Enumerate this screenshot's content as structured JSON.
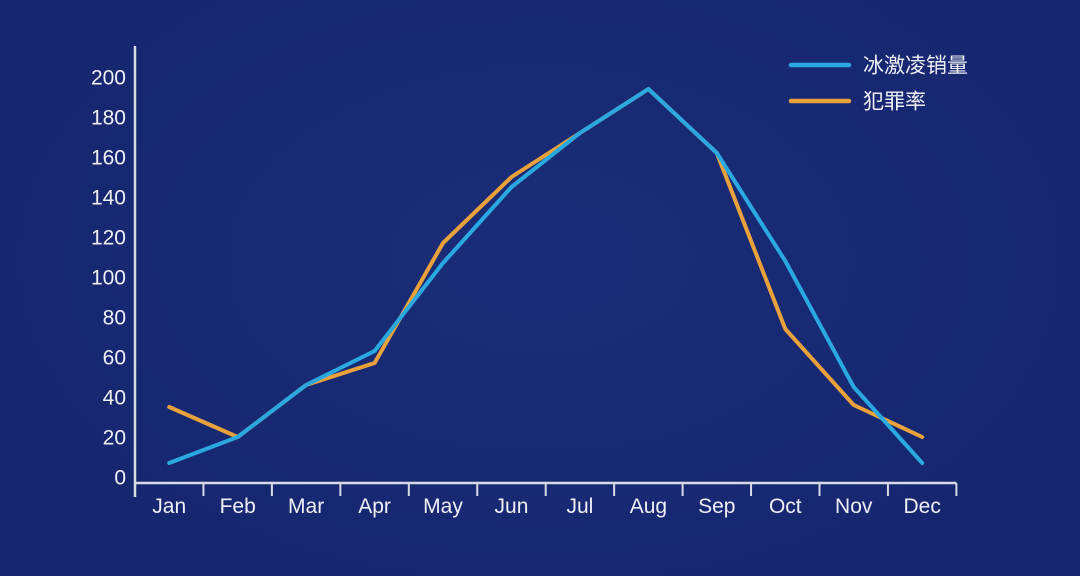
{
  "chart_data": {
    "type": "line",
    "title": "",
    "xlabel": "",
    "ylabel": "",
    "categories": [
      "Jan",
      "Feb",
      "Mar",
      "Apr",
      "May",
      "Jun",
      "Jul",
      "Aug",
      "Sep",
      "Oct",
      "Nov",
      "Dec"
    ],
    "series": [
      {
        "id": "ice-cream-sales",
        "name": "冰激凌销量",
        "color": "#2aa9e1",
        "values": [
          7,
          20,
          46,
          63,
          107,
          145,
          172,
          194,
          162,
          108,
          45,
          7
        ]
      },
      {
        "id": "crime-rate",
        "name": "犯罪率",
        "color": "#e9a23b",
        "values": [
          35,
          20,
          46,
          57,
          117,
          150,
          172,
          194,
          162,
          74,
          36,
          20
        ]
      }
    ],
    "ylim": [
      0,
      200
    ],
    "yticks": [
      0,
      20,
      40,
      60,
      80,
      100,
      120,
      140,
      160,
      180,
      200
    ],
    "grid": false,
    "legend_position": "top-right"
  },
  "colors": {
    "background": "#13246b",
    "axis": "#d8dae4",
    "tick_label": "#eff0f6",
    "series_blue": "#2aa9e1",
    "series_orange": "#e9a23b"
  }
}
